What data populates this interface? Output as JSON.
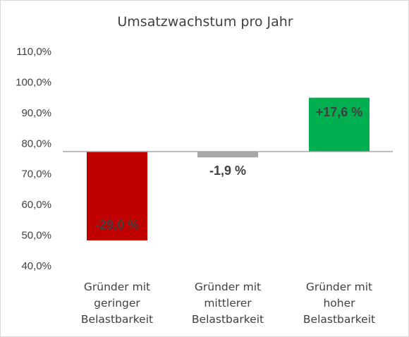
{
  "chart_data": {
    "type": "bar",
    "title": "Umsatzwachstum pro Jahr",
    "xlabel": "",
    "ylabel": "",
    "baseline": 77.3,
    "ylim": [
      40,
      110
    ],
    "yticks": [
      "40,0%",
      "50,0%",
      "60,0%",
      "70,0%",
      "80,0%",
      "90,0%",
      "100,0%",
      "110,0%"
    ],
    "categories": [
      [
        "Gründer mit",
        "geringer",
        "Belastbarkeit"
      ],
      [
        "Gründer mit",
        "mittlerer",
        "Belastbarkeit"
      ],
      [
        "Gründer mit",
        "hoher",
        "Belastbarkeit"
      ]
    ],
    "values": [
      -29.0,
      -1.9,
      17.6
    ],
    "labels": [
      "-29,0 %",
      "-1,9 %",
      "+17,6 %"
    ],
    "colors": [
      "#c00000",
      "#a6a6a6",
      "#00b050"
    ],
    "grid": false,
    "legend": "none"
  }
}
